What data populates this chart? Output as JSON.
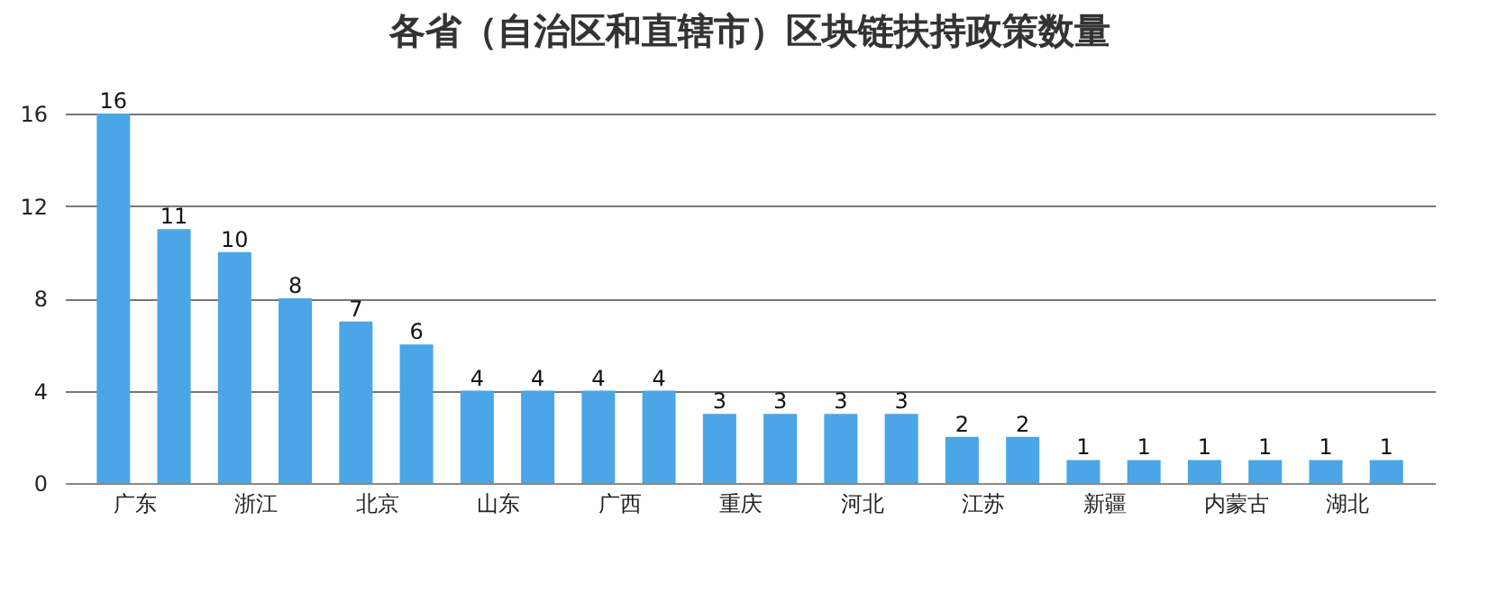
{
  "chart_data": {
    "type": "bar",
    "title": "各省（自治区和直辖市）区块链扶持政策数量",
    "categories": [
      "广东",
      null,
      "浙江",
      null,
      "北京",
      null,
      "山东",
      null,
      "广西",
      null,
      "重庆",
      null,
      "河北",
      null,
      "江苏",
      null,
      "新疆",
      null,
      "内蒙古",
      null,
      "湖北",
      null
    ],
    "values": [
      16,
      11,
      10,
      8,
      7,
      6,
      4,
      4,
      4,
      4,
      3,
      3,
      3,
      3,
      2,
      2,
      1,
      1,
      1,
      1,
      1,
      1
    ],
    "color": "#4aa6e6",
    "ylim": [
      0,
      16
    ],
    "yticks": [
      0,
      4,
      8,
      12,
      16
    ],
    "grid": "y",
    "data_labels": true
  }
}
